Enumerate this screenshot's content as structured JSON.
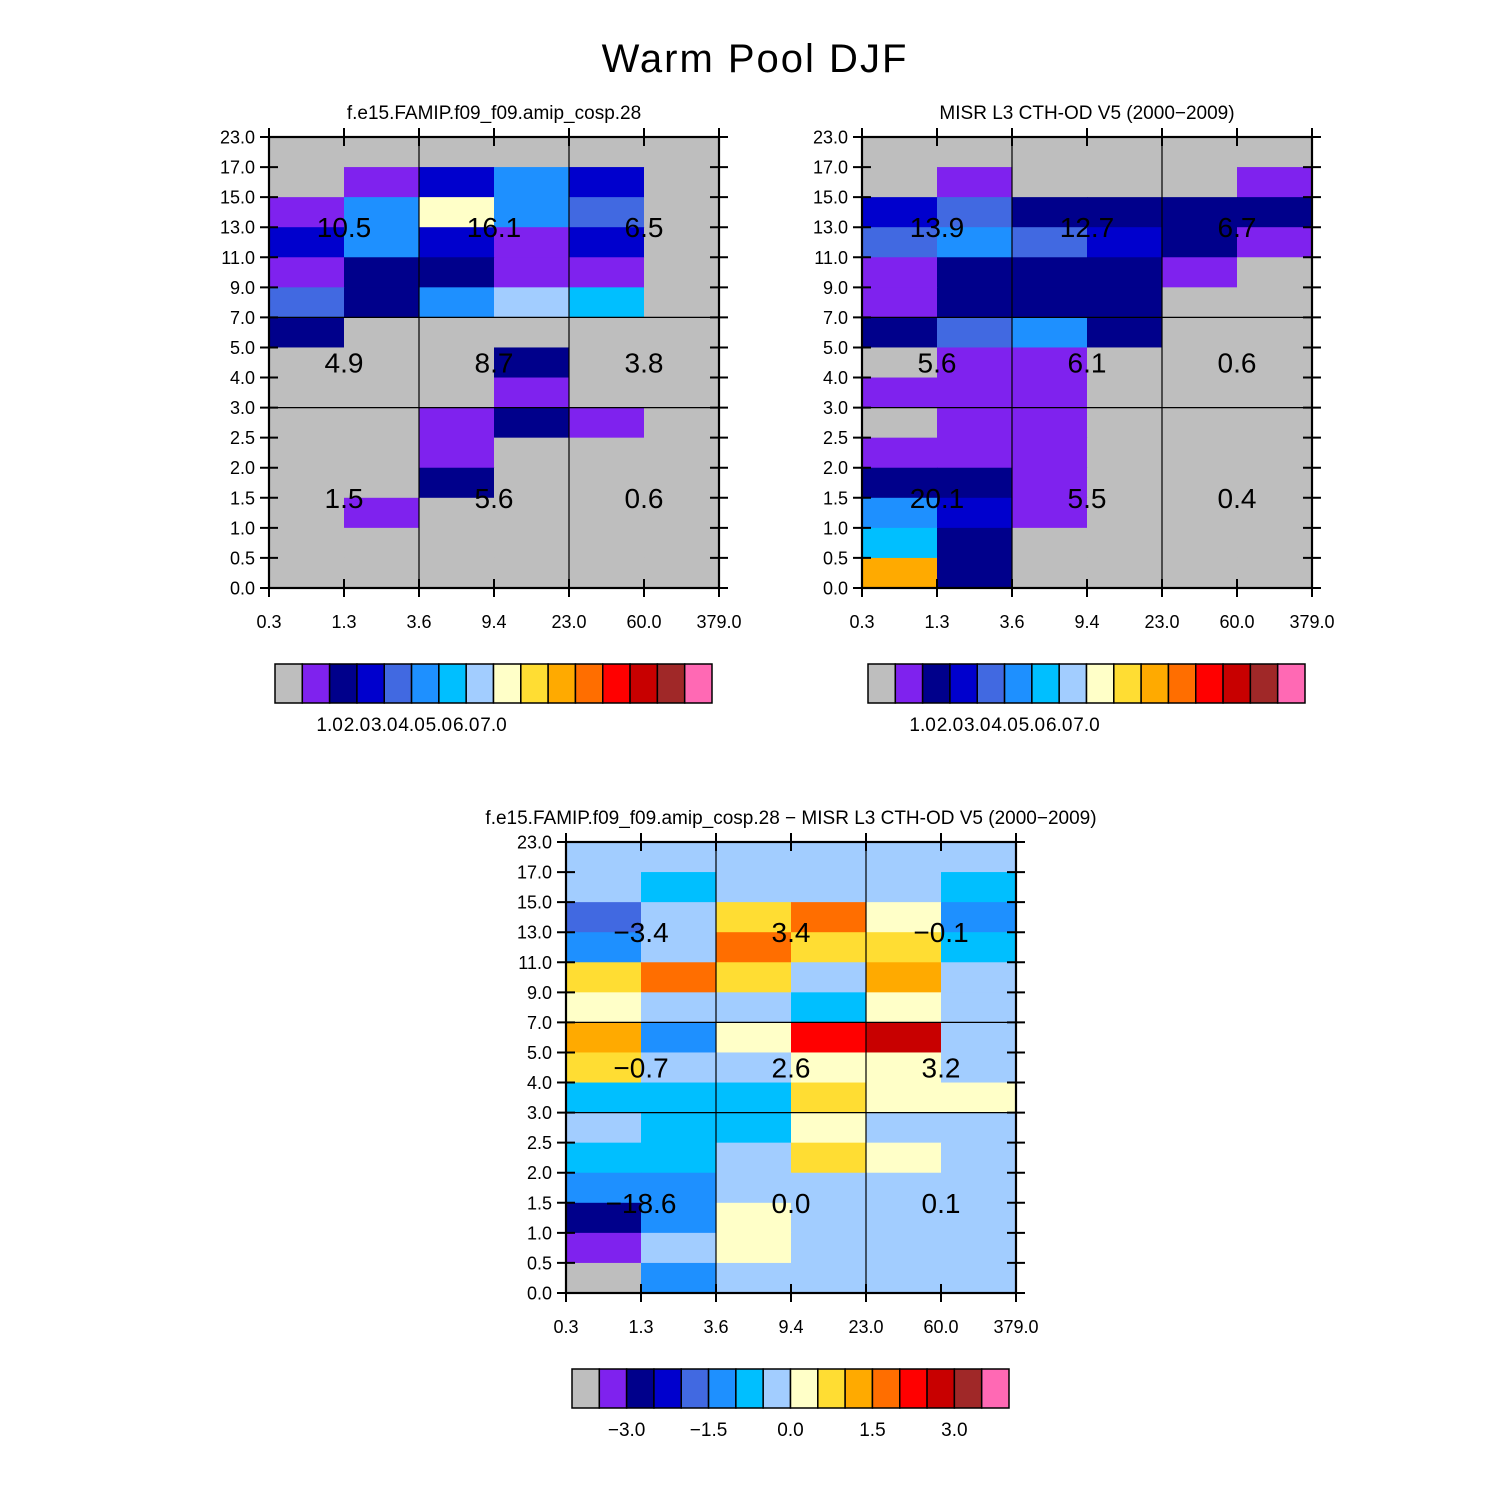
{
  "main_title": "Warm Pool DJF",
  "palette": [
    "#bebebe",
    "#7f22ee",
    "#00008b",
    "#0000cd",
    "#4169e1",
    "#1e90ff",
    "#00bfff",
    "#a2cdff",
    "#ffffc8",
    "#ffdd33",
    "#ffaa00",
    "#ff6e00",
    "#ff0000",
    "#c80000",
    "#a02828",
    "#ff69b4"
  ],
  "colorbars": {
    "abs": {
      "labels": [
        "1.0",
        "2.0",
        "3.0",
        "4.0",
        "5.0",
        "6.0",
        "7.0"
      ]
    },
    "diff": {
      "labels": [
        "−3.0",
        "−1.5",
        "0.0",
        "1.5",
        "3.0"
      ]
    }
  },
  "chart_data": [
    {
      "type": "heatmap",
      "title": "f.e15.FAMIP.f09_f09.amip_cosp.28",
      "x_tick_labels": [
        "0.3",
        "1.3",
        "3.6",
        "9.4",
        "23.0",
        "60.0",
        "379.0"
      ],
      "y_tick_labels": [
        "0.0",
        "0.5",
        "1.0",
        "1.5",
        "2.0",
        "2.5",
        "3.0",
        "4.0",
        "5.0",
        "7.0",
        "9.0",
        "11.0",
        "13.0",
        "15.0",
        "17.0",
        "23.0"
      ],
      "cell_color_index_rows_top_to_bottom": [
        [
          0,
          0,
          0,
          0,
          0,
          0
        ],
        [
          0,
          1,
          3,
          5,
          3,
          0
        ],
        [
          1,
          5,
          8,
          5,
          4,
          0
        ],
        [
          3,
          5,
          3,
          1,
          3,
          0
        ],
        [
          1,
          2,
          2,
          1,
          1,
          0
        ],
        [
          4,
          2,
          5,
          7,
          6,
          0
        ],
        [
          2,
          0,
          0,
          0,
          0,
          0
        ],
        [
          0,
          0,
          0,
          2,
          0,
          0
        ],
        [
          0,
          0,
          0,
          1,
          0,
          0
        ],
        [
          0,
          0,
          1,
          2,
          1,
          0
        ],
        [
          0,
          0,
          1,
          0,
          0,
          0
        ],
        [
          0,
          0,
          2,
          0,
          0,
          0
        ],
        [
          0,
          1,
          0,
          0,
          0,
          0
        ],
        [
          0,
          0,
          0,
          0,
          0,
          0
        ],
        [
          0,
          0,
          0,
          0,
          0,
          0
        ]
      ],
      "annotations": [
        [
          "10.5",
          "16.1",
          "6.5"
        ],
        [
          "4.9",
          "8.7",
          "3.8"
        ],
        [
          "1.5",
          "5.6",
          "0.6"
        ]
      ],
      "colorbar": "abs"
    },
    {
      "type": "heatmap",
      "title": "MISR L3 CTH-OD V5 (2000−2009)",
      "x_tick_labels": [
        "0.3",
        "1.3",
        "3.6",
        "9.4",
        "23.0",
        "60.0",
        "379.0"
      ],
      "y_tick_labels": [
        "0.0",
        "0.5",
        "1.0",
        "1.5",
        "2.0",
        "2.5",
        "3.0",
        "4.0",
        "5.0",
        "7.0",
        "9.0",
        "11.0",
        "13.0",
        "15.0",
        "17.0",
        "23.0"
      ],
      "cell_color_index_rows_top_to_bottom": [
        [
          0,
          0,
          0,
          0,
          0,
          0
        ],
        [
          0,
          1,
          0,
          0,
          0,
          1
        ],
        [
          3,
          4,
          2,
          2,
          2,
          2
        ],
        [
          4,
          5,
          4,
          3,
          2,
          1
        ],
        [
          1,
          2,
          2,
          2,
          1,
          0
        ],
        [
          1,
          2,
          2,
          2,
          0,
          0
        ],
        [
          2,
          4,
          5,
          2,
          0,
          0
        ],
        [
          0,
          1,
          1,
          0,
          0,
          0
        ],
        [
          1,
          1,
          1,
          0,
          0,
          0
        ],
        [
          0,
          1,
          1,
          0,
          0,
          0
        ],
        [
          1,
          1,
          1,
          0,
          0,
          0
        ],
        [
          2,
          2,
          1,
          0,
          0,
          0
        ],
        [
          5,
          3,
          1,
          0,
          0,
          0
        ],
        [
          6,
          2,
          0,
          0,
          0,
          0
        ],
        [
          10,
          2,
          0,
          0,
          0,
          0
        ]
      ],
      "annotations": [
        [
          "13.9",
          "12.7",
          "6.7"
        ],
        [
          "5.6",
          "6.1",
          "0.6"
        ],
        [
          "20.1",
          "5.5",
          "0.4"
        ]
      ],
      "colorbar": "abs"
    },
    {
      "type": "heatmap",
      "title": "f.e15.FAMIP.f09_f09.amip_cosp.28 − MISR L3 CTH-OD V5 (2000−2009)",
      "x_tick_labels": [
        "0.3",
        "1.3",
        "3.6",
        "9.4",
        "23.0",
        "60.0",
        "379.0"
      ],
      "y_tick_labels": [
        "0.0",
        "0.5",
        "1.0",
        "1.5",
        "2.0",
        "2.5",
        "3.0",
        "4.0",
        "5.0",
        "7.0",
        "9.0",
        "11.0",
        "13.0",
        "15.0",
        "17.0",
        "23.0"
      ],
      "cell_color_index_rows_top_to_bottom": [
        [
          7,
          7,
          7,
          7,
          7,
          7
        ],
        [
          7,
          6,
          7,
          7,
          7,
          6
        ],
        [
          4,
          7,
          9,
          11,
          8,
          5
        ],
        [
          5,
          7,
          11,
          9,
          9,
          6
        ],
        [
          9,
          11,
          9,
          7,
          10,
          7
        ],
        [
          8,
          7,
          7,
          6,
          8,
          7
        ],
        [
          10,
          5,
          8,
          12,
          13,
          7
        ],
        [
          9,
          7,
          7,
          8,
          8,
          7
        ],
        [
          6,
          6,
          6,
          9,
          8,
          8
        ],
        [
          7,
          6,
          6,
          8,
          7,
          7
        ],
        [
          6,
          6,
          7,
          9,
          8,
          7
        ],
        [
          5,
          5,
          7,
          7,
          7,
          7
        ],
        [
          2,
          5,
          8,
          7,
          7,
          7
        ],
        [
          1,
          7,
          8,
          7,
          7,
          7
        ],
        [
          0,
          5,
          7,
          7,
          7,
          7
        ]
      ],
      "annotations": [
        [
          "−3.4",
          "3.4",
          "−0.1"
        ],
        [
          "−0.7",
          "2.6",
          "3.2"
        ],
        [
          "−18.6",
          "0.0",
          "0.1"
        ]
      ],
      "colorbar": "diff"
    }
  ]
}
